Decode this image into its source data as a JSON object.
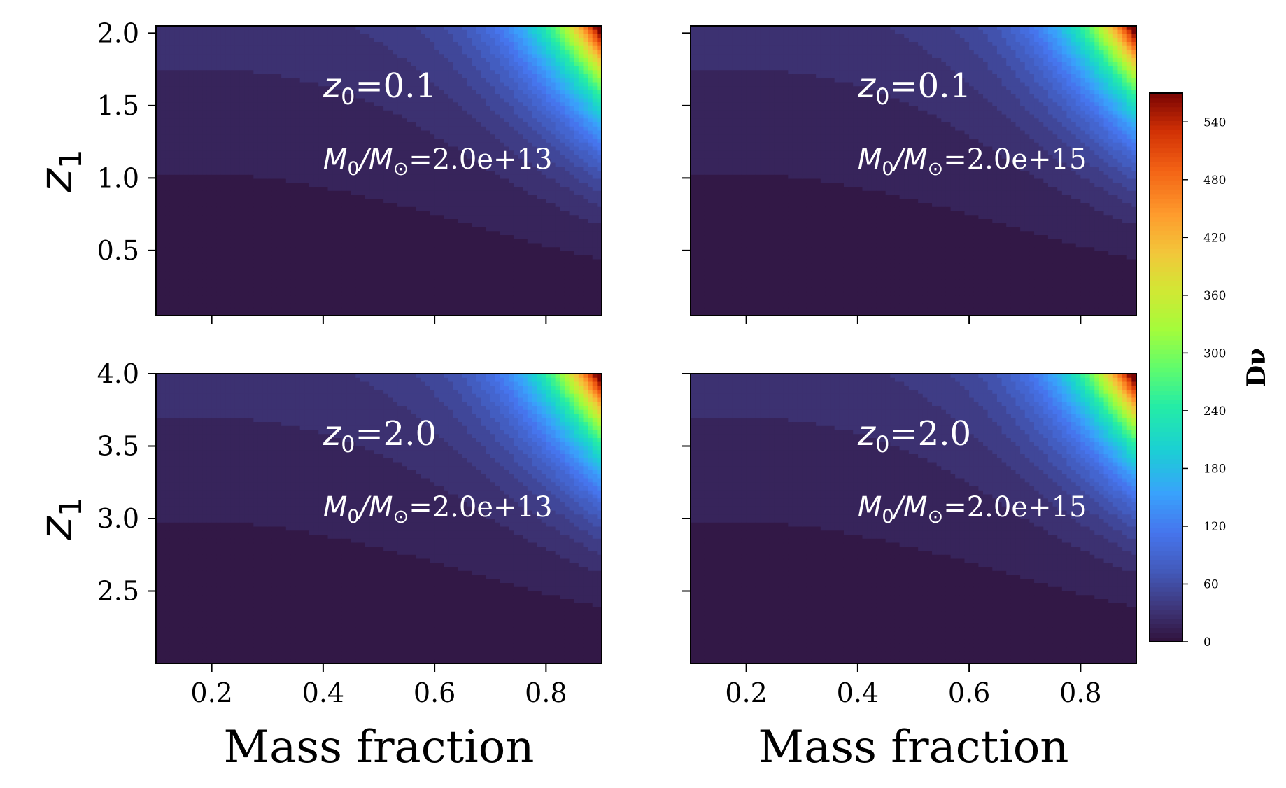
{
  "figure": {
    "xlabel": "Mass fraction",
    "ylabel_main": "z",
    "ylabel_sub": "1",
    "colorbar": {
      "label": "Dν",
      "ticks": [
        0,
        60,
        120,
        180,
        240,
        300,
        360,
        420,
        480,
        540
      ],
      "range": [
        0,
        570
      ],
      "colormap": "turbo"
    }
  },
  "chart_data": [
    {
      "type": "heatmap",
      "xlabel": "",
      "ylabel": "z1",
      "xlim": [
        0.1,
        0.9
      ],
      "ylim": [
        0.05,
        2.05
      ],
      "xticks": [
        0.2,
        0.4,
        0.6,
        0.8
      ],
      "yticks": [
        0.5,
        1.0,
        1.5,
        2.0
      ],
      "show_xticklabels": false,
      "show_yticklabels": true,
      "annotation": {
        "z_var": "z",
        "z_sub": "0",
        "z_value": "=0.1",
        "m_num": "M",
        "m_num_sub": "0",
        "m_den": "/M",
        "m_den_sub": "⊙",
        "m_value": "=2.0e+13"
      }
    },
    {
      "type": "heatmap",
      "xlabel": "",
      "ylabel": "",
      "xlim": [
        0.1,
        0.9
      ],
      "ylim": [
        0.05,
        2.05
      ],
      "xticks": [
        0.2,
        0.4,
        0.6,
        0.8
      ],
      "yticks": [
        0.5,
        1.0,
        1.5,
        2.0
      ],
      "show_xticklabels": false,
      "show_yticklabels": false,
      "annotation": {
        "z_var": "z",
        "z_sub": "0",
        "z_value": "=0.1",
        "m_num": "M",
        "m_num_sub": "0",
        "m_den": "/M",
        "m_den_sub": "⊙",
        "m_value": "=2.0e+15"
      }
    },
    {
      "type": "heatmap",
      "xlabel": "Mass fraction",
      "ylabel": "z1",
      "xlim": [
        0.1,
        0.9
      ],
      "ylim": [
        2.0,
        4.0
      ],
      "xticks": [
        0.2,
        0.4,
        0.6,
        0.8
      ],
      "yticks": [
        2.5,
        3.0,
        3.5,
        4.0
      ],
      "show_xticklabels": true,
      "show_yticklabels": true,
      "annotation": {
        "z_var": "z",
        "z_sub": "0",
        "z_value": "=2.0",
        "m_num": "M",
        "m_num_sub": "0",
        "m_den": "/M",
        "m_den_sub": "⊙",
        "m_value": "=2.0e+13"
      }
    },
    {
      "type": "heatmap",
      "xlabel": "Mass fraction",
      "ylabel": "",
      "xlim": [
        0.1,
        0.9
      ],
      "ylim": [
        2.0,
        4.0
      ],
      "xticks": [
        0.2,
        0.4,
        0.6,
        0.8
      ],
      "yticks": [
        2.5,
        3.0,
        3.5,
        4.0
      ],
      "show_xticklabels": true,
      "show_yticklabels": false,
      "annotation": {
        "z_var": "z",
        "z_sub": "0",
        "z_value": "=2.0",
        "m_num": "M",
        "m_num_sub": "0",
        "m_den": "/M",
        "m_den_sub": "⊙",
        "m_value": "=2.0e+15"
      }
    }
  ]
}
